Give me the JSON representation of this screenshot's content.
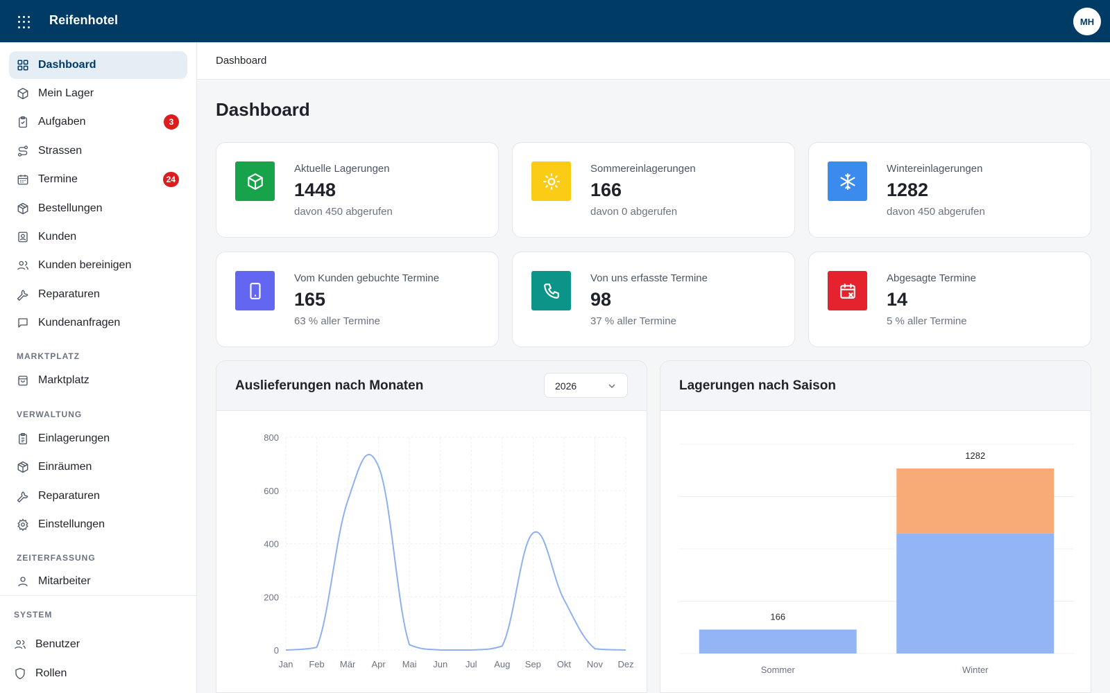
{
  "app": {
    "title": "Reifenhotel",
    "user_initials": "MH"
  },
  "breadcrumb": "Dashboard",
  "page_title": "Dashboard",
  "sidebar": {
    "items": [
      {
        "label": "Dashboard",
        "icon": "grid-icon",
        "active": true
      },
      {
        "label": "Mein Lager",
        "icon": "cube-icon"
      },
      {
        "label": "Aufgaben",
        "icon": "clipboard-icon",
        "badge": "3"
      },
      {
        "label": "Strassen",
        "icon": "route-icon"
      },
      {
        "label": "Termine",
        "icon": "calendar-icon",
        "badge": "24"
      },
      {
        "label": "Bestellungen",
        "icon": "package-icon"
      },
      {
        "label": "Kunden",
        "icon": "contact-icon"
      },
      {
        "label": "Kunden bereinigen",
        "icon": "users-icon"
      },
      {
        "label": "Reparaturen",
        "icon": "wrench-icon"
      },
      {
        "label": "Kundenanfragen",
        "icon": "message-icon"
      }
    ],
    "sections": {
      "marktplatz": {
        "title": "MARKTPLATZ",
        "items": [
          {
            "label": "Marktplatz",
            "icon": "shopping-bag-icon"
          }
        ]
      },
      "verwaltung": {
        "title": "VERWALTUNG",
        "items": [
          {
            "label": "Einlagerungen",
            "icon": "clipboard-list-icon"
          },
          {
            "label": "Einräumen",
            "icon": "package-icon"
          },
          {
            "label": "Reparaturen",
            "icon": "wrench-icon"
          },
          {
            "label": "Einstellungen",
            "icon": "gear-icon"
          }
        ]
      },
      "zeiterfassung": {
        "title": "ZEITERFASSUNG",
        "items": [
          {
            "label": "Mitarbeiter",
            "icon": "user-icon"
          }
        ]
      },
      "system": {
        "title": "SYSTEM",
        "items": [
          {
            "label": "Benutzer",
            "icon": "users-icon"
          },
          {
            "label": "Rollen",
            "icon": "shield-icon"
          }
        ]
      }
    }
  },
  "stats": [
    {
      "label": "Aktuelle Lagerungen",
      "value": "1448",
      "sub": "davon 450 abgerufen",
      "color": "#16a34a",
      "icon": "cube-icon"
    },
    {
      "label": "Sommereinlagerungen",
      "value": "166",
      "sub": "davon 0 abgerufen",
      "color": "#facc15",
      "icon": "sun-icon"
    },
    {
      "label": "Wintereinlagerungen",
      "value": "1282",
      "sub": "davon 450 abgerufen",
      "color": "#3b8bef",
      "icon": "snowflake-icon"
    },
    {
      "label": "Vom Kunden gebuchte Termine",
      "value": "165",
      "sub": "63 % aller Termine",
      "color": "#6366f1",
      "icon": "tablet-icon"
    },
    {
      "label": "Von uns erfasste Termine",
      "value": "98",
      "sub": "37 % aller Termine",
      "color": "#0d9488",
      "icon": "phone-icon"
    },
    {
      "label": "Abgesagte Termine",
      "value": "14",
      "sub": "5 % aller Termine",
      "color": "#e5232e",
      "icon": "calendar-x-icon"
    }
  ],
  "panels": {
    "deliveries": {
      "title": "Auslieferungen nach Monaten",
      "year": "2026"
    },
    "seasons": {
      "title": "Lagerungen nach Saison"
    }
  },
  "chart_data": [
    {
      "type": "line",
      "title": "Auslieferungen nach Monaten",
      "categories": [
        "Jan",
        "Feb",
        "Mär",
        "Apr",
        "Mai",
        "Jun",
        "Jul",
        "Aug",
        "Sep",
        "Okt",
        "Nov",
        "Dez"
      ],
      "values": [
        0,
        10,
        560,
        690,
        20,
        0,
        0,
        15,
        440,
        190,
        5,
        0
      ],
      "ylim": [
        0,
        800
      ],
      "yticks": [
        0,
        200,
        400,
        600,
        800
      ],
      "color": "#8fb0f0",
      "grid": true
    },
    {
      "type": "bar",
      "title": "Lagerungen nach Saison",
      "categories": [
        "Sommer",
        "Winter"
      ],
      "series": [
        {
          "values": [
            166,
            832
          ],
          "color": "#93b4f5"
        },
        {
          "values": [
            0,
            450
          ],
          "color": "#f8ab76"
        }
      ],
      "totals": [
        166,
        1282
      ],
      "ylim": [
        0,
        1450
      ],
      "grid": true
    }
  ]
}
